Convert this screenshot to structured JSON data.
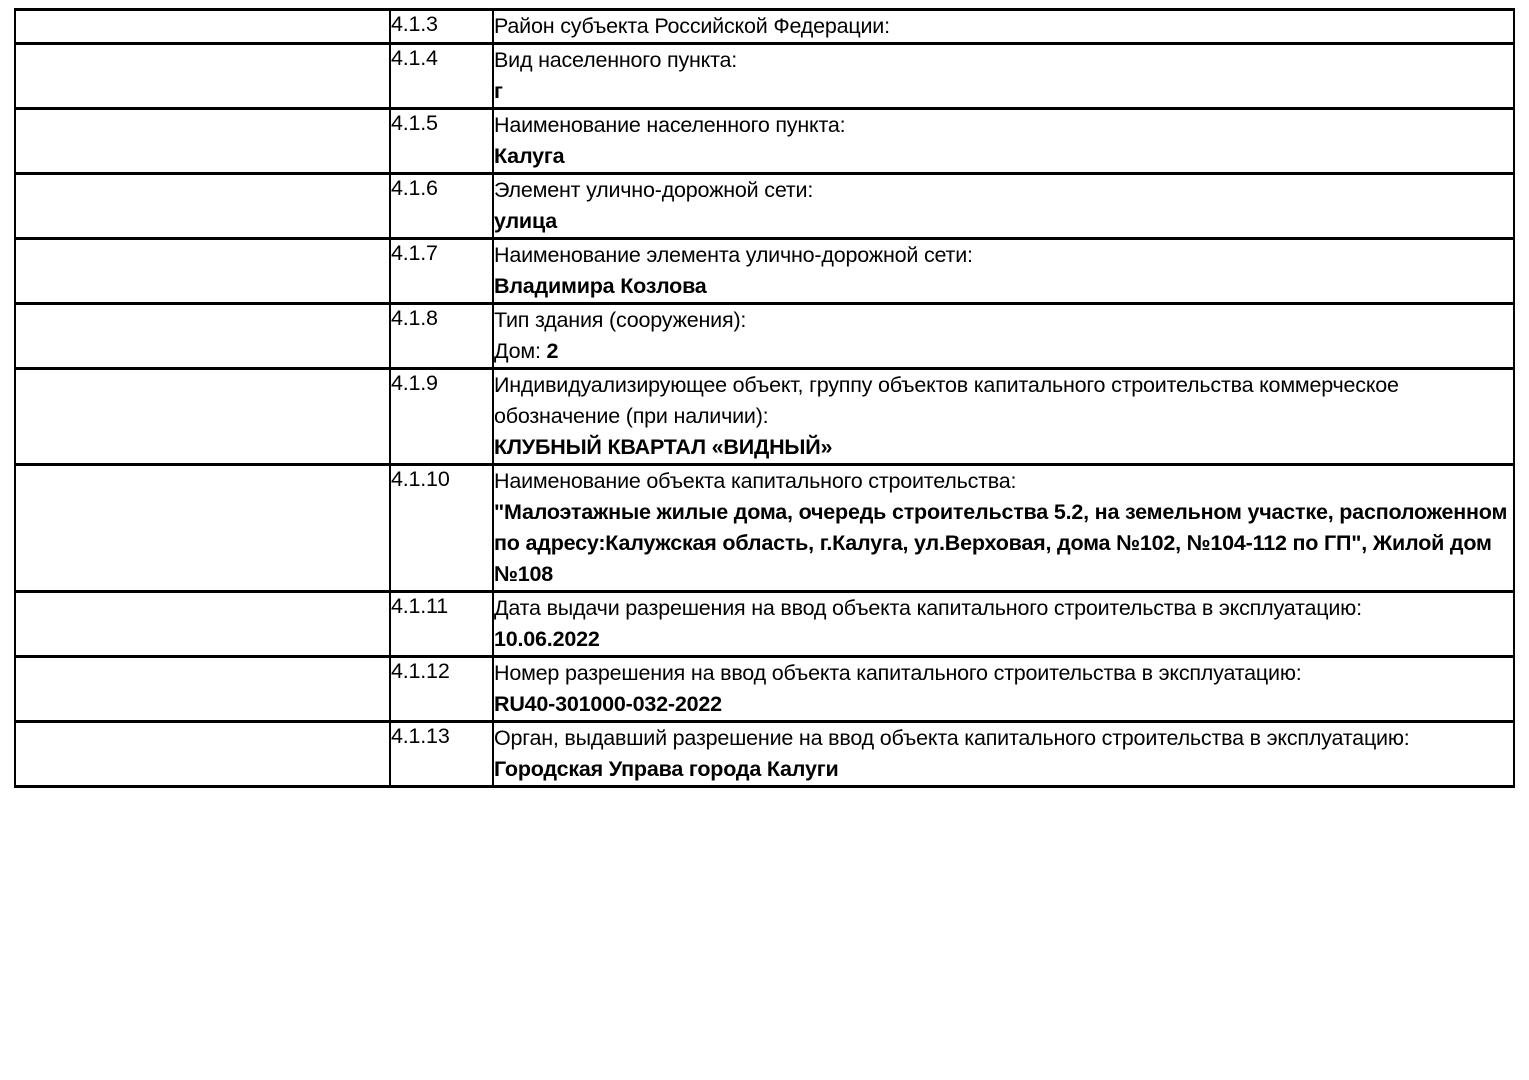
{
  "page": {
    "background_color": "#ffffff",
    "text_color": "#000000",
    "border_color": "#000000"
  },
  "table": {
    "rows": [
      {
        "num": "4.1.3",
        "label": "Район субъекта Российской Федерации:",
        "value": ""
      },
      {
        "num": "4.1.4",
        "label": "Вид населенного пункта:",
        "value": "г"
      },
      {
        "num": "4.1.5",
        "label": "Наименование населенного пункта:",
        "value": "Калуга"
      },
      {
        "num": "4.1.6",
        "label": "Элемент улично-дорожной сети:",
        "value": "улица"
      },
      {
        "num": "4.1.7",
        "label": "Наименование элемента улично-дорожной сети:",
        "value": "Владимира Козлова"
      },
      {
        "num": "4.1.8",
        "label": "Тип здания (сооружения):",
        "value_prefix": "Дом: ",
        "value": "2"
      },
      {
        "num": "4.1.9",
        "label": "Индивидуализирующее объект, группу объектов капитального строительства коммерческое обозначение (при наличии):",
        "value": "КЛУБНЫЙ КВАРТАЛ «ВИДНЫЙ»"
      },
      {
        "num": "4.1.10",
        "label": "Наименование объекта капитального строительства:",
        "value": "\"Малоэтажные жилые дома, очередь строительства 5.2, на земельном участке, расположенном по адресу:Калужская область, г.Калуга, ул.Верховая, дома №102, №104-112 по ГП\", Жилой дом №108"
      },
      {
        "num": "4.1.11",
        "label": "Дата выдачи разрешения на ввод объекта капитального строительства в эксплуатацию:",
        "value": "10.06.2022"
      },
      {
        "num": "4.1.12",
        "label": "Номер разрешения на ввод объекта капитального строительства в эксплуатацию:",
        "value": "RU40-301000-032-2022"
      },
      {
        "num": "4.1.13",
        "label": "Орган, выдавший разрешение на ввод объекта капитального строительства в эксплуатацию:",
        "value": "Городская Управа города Калуги"
      }
    ]
  }
}
